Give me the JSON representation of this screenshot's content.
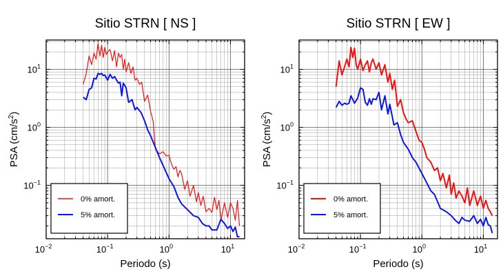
{
  "chart_data": [
    {
      "type": "line",
      "title": "Sitio STRN [ NS ]",
      "xlabel": "Periodo (s)",
      "ylabel_main": "PSA (cm/s",
      "ylabel_sup": "2",
      "ylabel_close": ")",
      "x_scale": "log",
      "y_scale": "log",
      "xlim": [
        0.01,
        17
      ],
      "ylim": [
        0.012,
        32
      ],
      "x_ticks": [
        {
          "value": 0.01,
          "base": "10",
          "exp": "−2"
        },
        {
          "value": 0.1,
          "base": "10",
          "exp": "−1"
        },
        {
          "value": 1,
          "base": "10",
          "exp": "0"
        },
        {
          "value": 10,
          "base": "10",
          "exp": "1"
        }
      ],
      "y_ticks": [
        {
          "value": 0.1,
          "base": "10",
          "exp": "−1"
        },
        {
          "value": 1,
          "base": "10",
          "exp": "0"
        },
        {
          "value": 10,
          "base": "10",
          "exp": "1"
        }
      ],
      "grid": true,
      "legend_position": "bottom-left",
      "series": [
        {
          "name": "0% amort.",
          "color": "#ee1111",
          "x": [
            0.04,
            0.045,
            0.05,
            0.055,
            0.06,
            0.065,
            0.07,
            0.075,
            0.08,
            0.085,
            0.09,
            0.095,
            0.1,
            0.11,
            0.12,
            0.13,
            0.14,
            0.15,
            0.16,
            0.17,
            0.18,
            0.19,
            0.2,
            0.22,
            0.24,
            0.26,
            0.28,
            0.3,
            0.33,
            0.36,
            0.4,
            0.45,
            0.5,
            0.55,
            0.6,
            0.7,
            0.8,
            0.9,
            1.0,
            1.1,
            1.2,
            1.3,
            1.4,
            1.5,
            1.6,
            1.8,
            2.0,
            2.2,
            2.5,
            2.8,
            3.0,
            3.3,
            3.6,
            4.0,
            4.5,
            5.0,
            5.5,
            6.0,
            6.5,
            7.0,
            8.0,
            9.0,
            10.0,
            11.0,
            12.0,
            13.0,
            14.0
          ],
          "y": [
            5.5,
            8.5,
            17,
            12,
            19,
            15,
            28,
            17,
            26,
            16,
            24,
            18,
            20,
            22,
            14,
            21,
            11,
            19,
            16,
            18,
            10,
            15,
            9,
            13,
            8.5,
            11,
            6.5,
            7,
            5.5,
            6,
            2.8,
            3.6,
            1.9,
            1.3,
            0.42,
            0.35,
            0.38,
            0.32,
            0.33,
            0.23,
            0.19,
            0.21,
            0.14,
            0.18,
            0.16,
            0.085,
            0.12,
            0.065,
            0.1,
            0.052,
            0.075,
            0.045,
            0.065,
            0.035,
            0.04,
            0.034,
            0.062,
            0.038,
            0.055,
            0.025,
            0.05,
            0.028,
            0.05,
            0.04,
            0.025,
            0.055,
            0.02
          ]
        },
        {
          "name": "5% amort.",
          "color": "#0a14e6",
          "x": [
            0.04,
            0.045,
            0.05,
            0.055,
            0.06,
            0.065,
            0.07,
            0.075,
            0.08,
            0.085,
            0.09,
            0.1,
            0.11,
            0.12,
            0.13,
            0.14,
            0.15,
            0.16,
            0.17,
            0.18,
            0.2,
            0.22,
            0.25,
            0.28,
            0.3,
            0.35,
            0.4,
            0.45,
            0.5,
            0.6,
            0.7,
            0.8,
            1.0,
            1.2,
            1.4,
            1.6,
            2.0,
            2.5,
            3.0,
            3.5,
            4.0,
            4.5,
            5.0,
            6.0,
            7.0,
            8.0,
            9.0,
            10.0,
            11.0,
            12.0,
            13.0,
            14.0
          ],
          "y": [
            3.3,
            3.0,
            4.5,
            4.8,
            7.0,
            6.8,
            8.5,
            8.2,
            8.5,
            7.8,
            8.0,
            6.5,
            8.2,
            7.0,
            7.5,
            6.5,
            5.8,
            6.0,
            3.5,
            5.8,
            4.8,
            2.7,
            3.0,
            2.0,
            2.2,
            1.8,
            1.3,
            0.9,
            0.72,
            0.45,
            0.3,
            0.22,
            0.13,
            0.095,
            0.062,
            0.048,
            0.038,
            0.03,
            0.028,
            0.022,
            0.02,
            0.02,
            0.017,
            0.017,
            0.026,
            0.022,
            0.018,
            0.02,
            0.016,
            0.019,
            0.013,
            0.013
          ]
        }
      ]
    },
    {
      "type": "line",
      "title": "Sitio STRN [ EW ]",
      "xlabel": "Periodo (s)",
      "ylabel_main": "PSA (cm/s",
      "ylabel_sup": "2",
      "ylabel_close": ")",
      "x_scale": "log",
      "y_scale": "log",
      "xlim": [
        0.01,
        17
      ],
      "ylim": [
        0.012,
        32
      ],
      "x_ticks": [
        {
          "value": 0.01,
          "base": "10",
          "exp": "−2"
        },
        {
          "value": 0.1,
          "base": "10",
          "exp": "−1"
        },
        {
          "value": 1,
          "base": "10",
          "exp": "0"
        },
        {
          "value": 10,
          "base": "10",
          "exp": "1"
        }
      ],
      "y_ticks": [
        {
          "value": 0.1,
          "base": "10",
          "exp": "−1"
        },
        {
          "value": 1,
          "base": "10",
          "exp": "0"
        },
        {
          "value": 10,
          "base": "10",
          "exp": "1"
        }
      ],
      "grid": true,
      "legend_position": "bottom-left",
      "series": [
        {
          "name": "0% amort.",
          "color": "#ee1111",
          "x": [
            0.04,
            0.045,
            0.05,
            0.055,
            0.06,
            0.065,
            0.07,
            0.075,
            0.08,
            0.085,
            0.09,
            0.1,
            0.11,
            0.12,
            0.13,
            0.14,
            0.15,
            0.16,
            0.18,
            0.2,
            0.22,
            0.25,
            0.28,
            0.3,
            0.33,
            0.36,
            0.4,
            0.45,
            0.5,
            0.55,
            0.6,
            0.7,
            0.8,
            0.9,
            1.0,
            1.1,
            1.2,
            1.4,
            1.6,
            1.8,
            2.0,
            2.2,
            2.5,
            2.8,
            3.0,
            3.3,
            3.6,
            4.0,
            4.5,
            5.0,
            5.5,
            6.0,
            7.0,
            8.0,
            9.0,
            10.0,
            11.0,
            12.0,
            13.0,
            14.0
          ],
          "y": [
            5.0,
            14,
            8.0,
            11,
            15,
            11,
            24,
            16,
            23,
            12,
            10,
            15,
            9.5,
            12,
            14,
            9,
            13,
            15,
            10,
            13,
            8.0,
            12,
            6.0,
            8.5,
            4.5,
            6.5,
            2.3,
            3.0,
            1.8,
            1.4,
            1.2,
            1.3,
            0.85,
            0.6,
            0.55,
            0.42,
            0.3,
            0.25,
            0.18,
            0.2,
            0.12,
            0.16,
            0.09,
            0.15,
            0.07,
            0.11,
            0.06,
            0.08,
            0.065,
            0.05,
            0.09,
            0.045,
            0.08,
            0.045,
            0.065,
            0.04,
            0.055,
            0.04,
            0.035,
            0.03
          ]
        },
        {
          "name": "5% amort.",
          "color": "#0a14e6",
          "x": [
            0.04,
            0.045,
            0.05,
            0.055,
            0.06,
            0.065,
            0.07,
            0.08,
            0.09,
            0.1,
            0.11,
            0.12,
            0.13,
            0.14,
            0.15,
            0.16,
            0.18,
            0.2,
            0.22,
            0.25,
            0.28,
            0.3,
            0.35,
            0.4,
            0.45,
            0.5,
            0.6,
            0.7,
            0.8,
            1.0,
            1.2,
            1.4,
            1.6,
            2.0,
            2.5,
            3.0,
            3.5,
            4.0,
            4.5,
            5.0,
            6.0,
            7.0,
            8.0,
            9.0,
            10.0,
            11.0,
            12.0,
            13.0,
            14.0
          ],
          "y": [
            2.2,
            2.8,
            2.4,
            2.6,
            2.5,
            2.6,
            3.5,
            2.6,
            3.2,
            4.8,
            4.5,
            2.7,
            2.4,
            3.1,
            2.5,
            3.1,
            3.0,
            4.0,
            2.0,
            3.5,
            1.7,
            2.5,
            1.1,
            1.2,
            0.75,
            0.55,
            0.42,
            0.3,
            0.25,
            0.16,
            0.11,
            0.08,
            0.07,
            0.04,
            0.035,
            0.03,
            0.025,
            0.022,
            0.028,
            0.025,
            0.024,
            0.03,
            0.022,
            0.026,
            0.02,
            0.028,
            0.021,
            0.02,
            0.015
          ]
        }
      ]
    }
  ]
}
